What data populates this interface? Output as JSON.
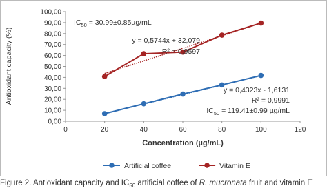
{
  "chart_data": {
    "type": "line",
    "y_label": "Antioxidant capacity (%)",
    "x_label": "Concentration (µg/mL)",
    "x": [
      20,
      40,
      60,
      80,
      100
    ],
    "series": [
      {
        "name": "Artificial coffee",
        "color": "#2e6db4",
        "values": [
          6.9,
          15.9,
          24.8,
          33.1,
          41.8
        ],
        "trendline": {
          "slope": 0.4323,
          "intercept": -1.6131
        }
      },
      {
        "name": "Vitamin E",
        "color": "#a52424",
        "values": [
          40.8,
          61.6,
          63.1,
          78.6,
          89.6
        ],
        "trendline": {
          "slope": 0.5744,
          "intercept": 32.079
        }
      }
    ],
    "xlim": [
      0,
      120
    ],
    "xticks": [
      0,
      20,
      40,
      60,
      80,
      100,
      120
    ],
    "ylim": [
      0,
      100
    ],
    "yticks": [
      {
        "value": 0,
        "label": "0,00"
      },
      {
        "value": 10,
        "label": "10,00"
      },
      {
        "value": 20,
        "label": "20,00"
      },
      {
        "value": 30,
        "label": "30,00"
      },
      {
        "value": 40,
        "label": "40,00"
      },
      {
        "value": 50,
        "label": "50,00"
      },
      {
        "value": 60,
        "label": "60,00"
      },
      {
        "value": 70,
        "label": "70,00"
      },
      {
        "value": 80,
        "label": "80,00"
      },
      {
        "value": 90,
        "label": "90,00"
      },
      {
        "value": 100,
        "label": "100,00"
      }
    ],
    "legend": "bottom",
    "annotations": [
      [
        "IC",
        "50",
        " = 30.99±0.85µg/mL"
      ],
      [
        "y = 0,5744x + 32,079"
      ],
      [
        "R² = 0,9597"
      ],
      [
        "y = 0,4323x - 1,6131"
      ],
      [
        "R² = 0,9991"
      ],
      [
        "IC",
        "50",
        " = 119.41±0.99 µg/mL"
      ]
    ],
    "caption": [
      "Figure 2. Antioxidant capacity and IC",
      "50",
      " artificial coffee of ",
      "R. mucronata",
      " fruit and vitamin E"
    ]
  }
}
